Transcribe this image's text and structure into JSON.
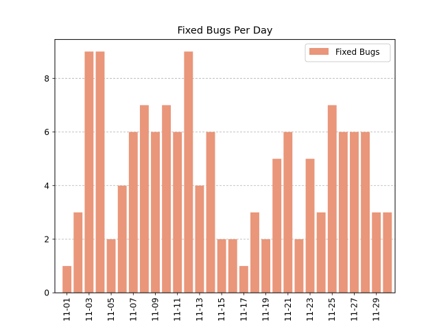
{
  "chart_data": {
    "type": "bar",
    "title": "Fixed Bugs Per Day",
    "xlabel": "",
    "ylabel": "",
    "categories": [
      "11-01",
      "11-02",
      "11-03",
      "11-04",
      "11-05",
      "11-06",
      "11-07",
      "11-08",
      "11-09",
      "11-10",
      "11-11",
      "11-12",
      "11-13",
      "11-14",
      "11-15",
      "11-16",
      "11-17",
      "11-18",
      "11-19",
      "11-20",
      "11-21",
      "11-22",
      "11-23",
      "11-24",
      "11-25",
      "11-26",
      "11-27",
      "11-28",
      "11-29",
      "11-30"
    ],
    "x_tick_labels": [
      "11-01",
      "11-03",
      "11-05",
      "11-07",
      "11-09",
      "11-11",
      "11-13",
      "11-15",
      "11-17",
      "11-19",
      "11-21",
      "11-23",
      "11-25",
      "11-27",
      "11-29"
    ],
    "series": [
      {
        "name": "Fixed Bugs",
        "color": "#e9967a",
        "values": [
          1,
          3,
          9,
          9,
          2,
          4,
          6,
          7,
          6,
          7,
          6,
          9,
          4,
          6,
          2,
          2,
          1,
          3,
          2,
          5,
          6,
          2,
          5,
          3,
          7,
          6,
          6,
          6,
          3,
          3
        ]
      }
    ],
    "ylim": [
      0,
      9.45
    ],
    "y_ticks": [
      0,
      2,
      4,
      6,
      8
    ],
    "grid": "y-dashed",
    "legend_position": "top-right"
  }
}
